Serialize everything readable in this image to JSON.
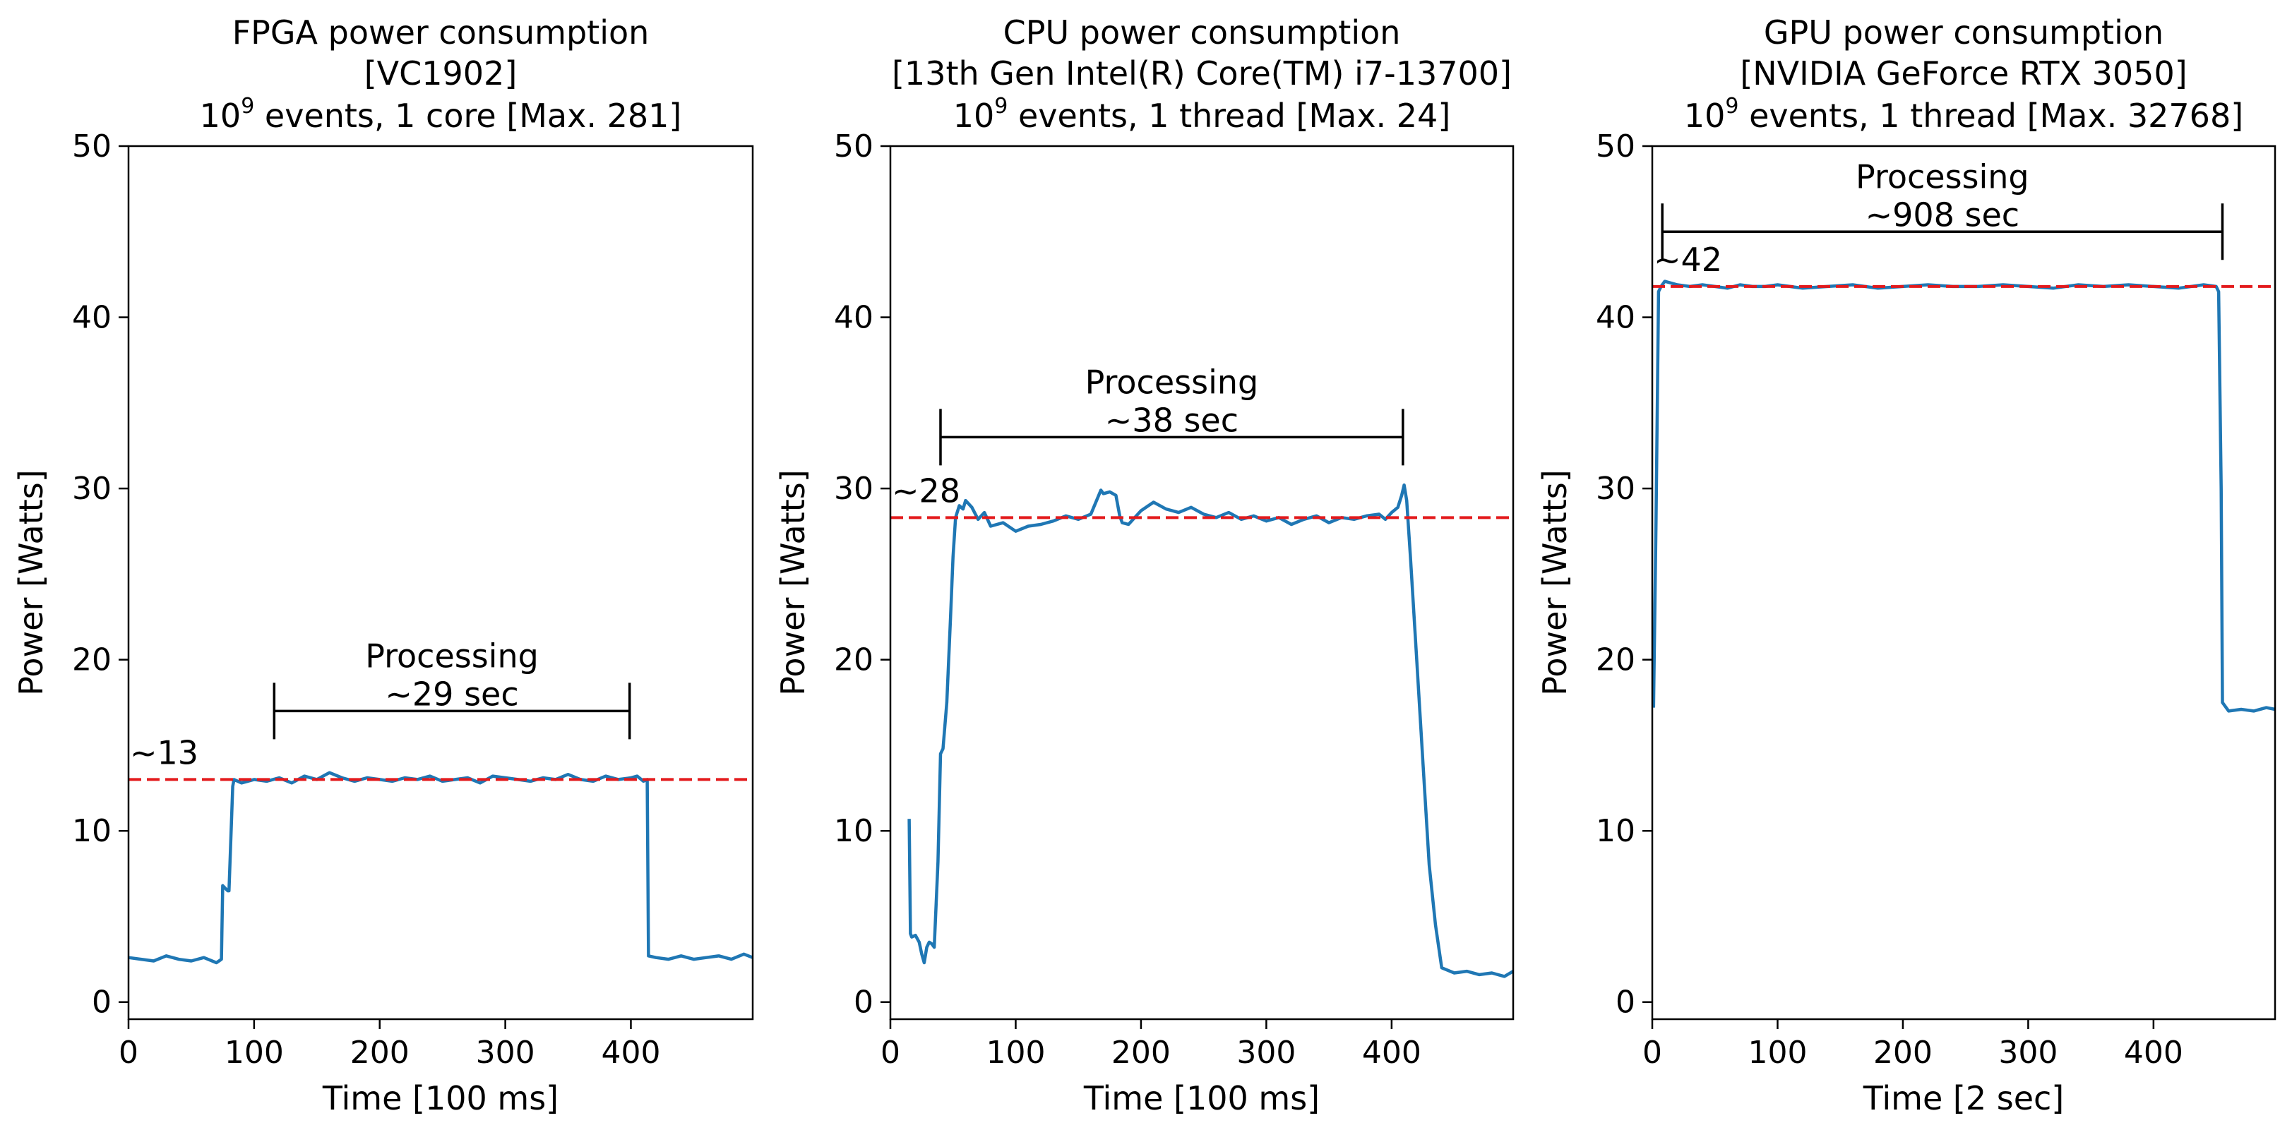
{
  "colors": {
    "series": "#1f77b4",
    "reference": "#e31a1c",
    "axis": "#000000",
    "background": "#ffffff"
  },
  "chart_data": [
    {
      "type": "line",
      "title_lines": [
        "FPGA power consumption",
        "[VC1902]"
      ],
      "title_line3": {
        "prefix": "10",
        "exponent": "9",
        "suffix": " events, 1 core [Max. 281]"
      },
      "xlabel": "Time [100 ms]",
      "ylabel": "Power [Watts]",
      "xlim": [
        0,
        497
      ],
      "ylim": [
        -1,
        50
      ],
      "xticks": [
        0,
        100,
        200,
        300,
        400
      ],
      "yticks": [
        0,
        10,
        20,
        30,
        40,
        50
      ],
      "reference_line": {
        "y": 13,
        "label": "~13"
      },
      "processing": {
        "start": 116,
        "end": 399,
        "y": 17,
        "label_line1": "Processing",
        "label_line2": "~29 sec"
      },
      "series": [
        {
          "name": "power",
          "x": [
            0,
            10,
            20,
            30,
            40,
            50,
            60,
            70,
            74,
            75,
            79,
            80,
            83,
            84,
            90,
            100,
            110,
            120,
            130,
            140,
            150,
            160,
            170,
            180,
            190,
            200,
            210,
            220,
            230,
            240,
            250,
            260,
            270,
            280,
            290,
            300,
            310,
            320,
            330,
            340,
            350,
            360,
            370,
            380,
            390,
            400,
            405,
            410,
            413,
            414,
            420,
            430,
            440,
            450,
            460,
            470,
            480,
            490,
            497
          ],
          "y": [
            2.6,
            2.5,
            2.4,
            2.7,
            2.5,
            2.4,
            2.6,
            2.3,
            2.5,
            6.8,
            6.5,
            6.5,
            12.6,
            13.0,
            12.8,
            13.0,
            12.9,
            13.1,
            12.8,
            13.2,
            13.0,
            13.4,
            13.1,
            12.9,
            13.1,
            13.0,
            12.9,
            13.1,
            13.0,
            13.2,
            12.9,
            13.0,
            13.1,
            12.8,
            13.2,
            13.1,
            13.0,
            12.9,
            13.1,
            13.0,
            13.3,
            13.0,
            12.9,
            13.2,
            13.0,
            13.1,
            13.2,
            12.9,
            13.0,
            2.7,
            2.6,
            2.5,
            2.7,
            2.5,
            2.6,
            2.7,
            2.5,
            2.8,
            2.6
          ]
        }
      ]
    },
    {
      "type": "line",
      "title_lines": [
        "CPU power consumption",
        "[13th Gen Intel(R) Core(TM) i7-13700]"
      ],
      "title_line3": {
        "prefix": "10",
        "exponent": "9",
        "suffix": " events, 1 thread [Max. 24]"
      },
      "xlabel": "Time [100 ms]",
      "ylabel": "Power [Watts]",
      "xlim": [
        0,
        497
      ],
      "ylim": [
        -1,
        50
      ],
      "xticks": [
        0,
        100,
        200,
        300,
        400
      ],
      "yticks": [
        0,
        10,
        20,
        30,
        40,
        50
      ],
      "reference_line": {
        "y": 28.3,
        "label": "~28"
      },
      "processing": {
        "start": 40,
        "end": 409,
        "y": 33,
        "label_line1": "Processing",
        "label_line2": "~38 sec"
      },
      "series": [
        {
          "name": "power",
          "x": [
            15,
            16,
            17,
            20,
            23,
            25,
            27,
            29,
            31,
            33,
            35,
            38,
            40,
            42,
            45,
            48,
            50,
            52,
            55,
            58,
            60,
            65,
            70,
            75,
            80,
            90,
            100,
            110,
            120,
            130,
            140,
            150,
            160,
            168,
            170,
            175,
            180,
            183,
            185,
            190,
            200,
            210,
            220,
            230,
            240,
            250,
            260,
            270,
            280,
            290,
            300,
            310,
            320,
            330,
            340,
            350,
            360,
            370,
            380,
            390,
            395,
            400,
            405,
            408,
            410,
            412,
            415,
            420,
            425,
            430,
            435,
            440,
            450,
            460,
            470,
            480,
            490,
            497
          ],
          "y": [
            10.7,
            4.0,
            3.8,
            3.9,
            3.5,
            2.8,
            2.3,
            3.2,
            3.5,
            3.4,
            3.2,
            8.2,
            14.5,
            14.8,
            17.5,
            22.5,
            26.0,
            28.3,
            29.0,
            28.8,
            29.3,
            28.9,
            28.2,
            28.6,
            27.8,
            28.0,
            27.5,
            27.8,
            27.9,
            28.1,
            28.4,
            28.2,
            28.5,
            29.9,
            29.7,
            29.8,
            29.6,
            28.4,
            28.0,
            27.9,
            28.7,
            29.2,
            28.8,
            28.6,
            28.9,
            28.5,
            28.3,
            28.6,
            28.2,
            28.4,
            28.1,
            28.3,
            27.9,
            28.2,
            28.4,
            28.0,
            28.3,
            28.2,
            28.4,
            28.5,
            28.2,
            28.6,
            28.9,
            29.6,
            30.2,
            29.3,
            26.0,
            20.0,
            14.0,
            8.0,
            4.5,
            2.0,
            1.7,
            1.8,
            1.6,
            1.7,
            1.5,
            1.8
          ]
        }
      ]
    },
    {
      "type": "line",
      "title_lines": [
        "GPU power consumption",
        "[NVIDIA GeForce RTX 3050]"
      ],
      "title_line3": {
        "prefix": "10",
        "exponent": "9",
        "suffix": " events, 1 thread [Max. 32768]"
      },
      "xlabel": "Time [2 sec]",
      "ylabel": "Power [Watts]",
      "xlim": [
        0,
        497
      ],
      "ylim": [
        -1,
        50
      ],
      "xticks": [
        0,
        100,
        200,
        300,
        400
      ],
      "yticks": [
        0,
        10,
        20,
        30,
        40,
        50
      ],
      "reference_line": {
        "y": 41.8,
        "label": "~42"
      },
      "processing": {
        "start": 8,
        "end": 455,
        "y": 45,
        "label_line1": "Processing",
        "label_line2": "~908 sec"
      },
      "series": [
        {
          "name": "power",
          "x": [
            1,
            3,
            5,
            7,
            10,
            15,
            20,
            30,
            40,
            50,
            60,
            70,
            80,
            90,
            100,
            120,
            140,
            160,
            180,
            200,
            220,
            240,
            260,
            280,
            300,
            320,
            340,
            360,
            380,
            400,
            420,
            440,
            450,
            452,
            454,
            455,
            460,
            470,
            480,
            490,
            497
          ],
          "y": [
            17.2,
            28.0,
            41.5,
            41.8,
            42.1,
            42.0,
            41.9,
            41.8,
            41.9,
            41.8,
            41.7,
            41.9,
            41.8,
            41.8,
            41.9,
            41.7,
            41.8,
            41.9,
            41.7,
            41.8,
            41.9,
            41.8,
            41.8,
            41.9,
            41.8,
            41.7,
            41.9,
            41.8,
            41.9,
            41.8,
            41.7,
            41.9,
            41.8,
            41.5,
            30.0,
            17.5,
            17.0,
            17.1,
            17.0,
            17.2,
            17.1
          ]
        }
      ]
    }
  ]
}
